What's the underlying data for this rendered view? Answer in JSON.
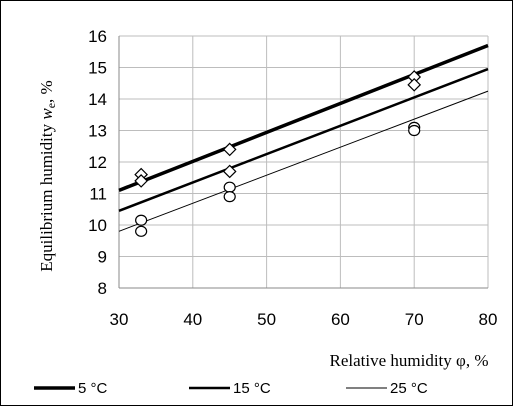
{
  "chart_data": {
    "type": "scatter",
    "xlabel": "Relative humidity φ, %",
    "ylabel_main": "Equilibrium humidity ",
    "ylabel_var": "w",
    "ylabel_sub": "e",
    "ylabel_tail": ", %",
    "xlim": [
      30,
      80
    ],
    "ylim": [
      8,
      16
    ],
    "xticks": [
      30,
      40,
      50,
      60,
      70,
      80
    ],
    "yticks": [
      8,
      9,
      10,
      11,
      12,
      13,
      14,
      15,
      16
    ],
    "grid": true,
    "legend_position": "bottom",
    "series": [
      {
        "name": "5 °C",
        "line": {
          "x": [
            30,
            80
          ],
          "y": [
            11.1,
            15.7
          ]
        },
        "line_width": 3.5,
        "color": "#000000",
        "marker": "diamond",
        "points": {
          "x": [
            33,
            45,
            70
          ],
          "y": [
            11.6,
            12.4,
            14.7
          ]
        }
      },
      {
        "name": "15 °C",
        "line": {
          "x": [
            30,
            80
          ],
          "y": [
            10.45,
            14.95
          ]
        },
        "line_width": 2.5,
        "color": "#000000",
        "marker": "diamond",
        "points": {
          "x": [
            33,
            45,
            70
          ],
          "y": [
            11.4,
            11.7,
            14.45
          ]
        }
      },
      {
        "name": "25 °C",
        "line": {
          "x": [
            30,
            80
          ],
          "y": [
            9.8,
            14.25
          ]
        },
        "line_width": 1,
        "color": "#000000",
        "marker": "circle",
        "points": {
          "x": [
            33,
            33,
            45,
            45,
            70,
            70
          ],
          "y": [
            10.15,
            9.8,
            11.2,
            10.9,
            13.1,
            13.0
          ]
        }
      }
    ]
  }
}
